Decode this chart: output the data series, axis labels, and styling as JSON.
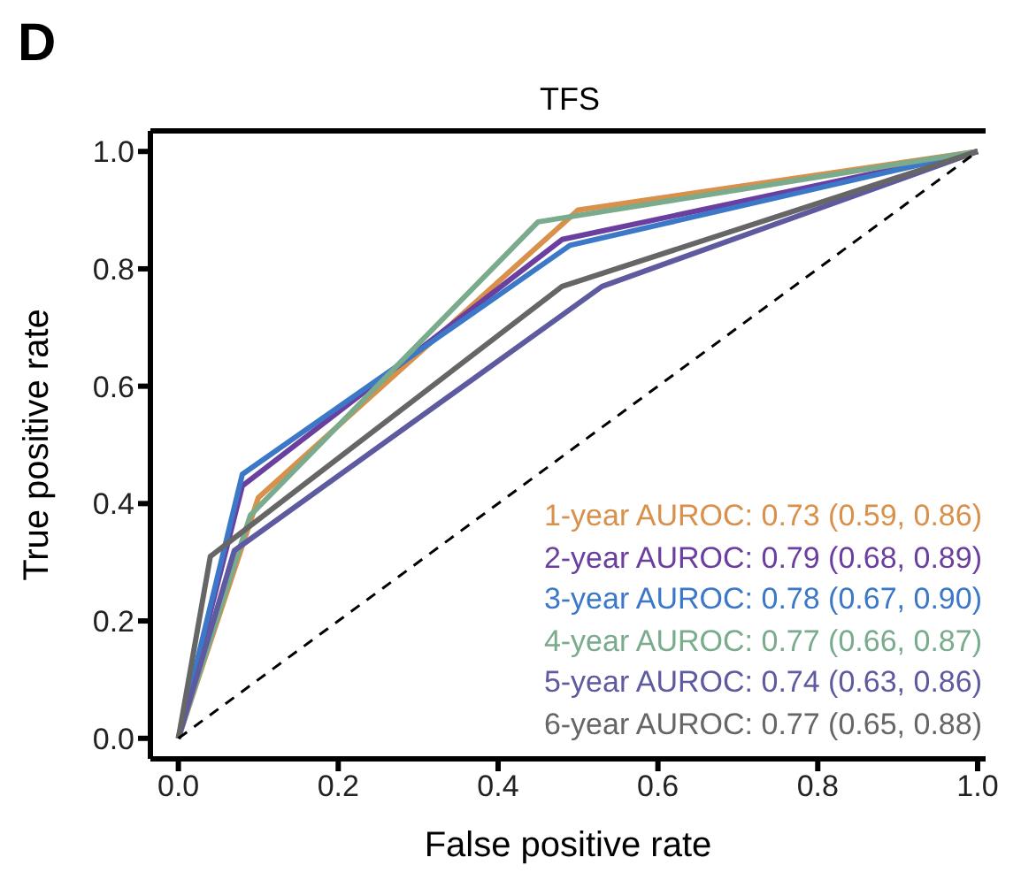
{
  "chart_data": {
    "type": "line",
    "title": "TFS",
    "xlabel": "False positive rate",
    "ylabel": "True positive rate",
    "annotations": [
      "D"
    ],
    "series": [
      {
        "name": "1-year AUROC: 0.73 (0.59, 0.86)",
        "color": "#d8904a",
        "x": [
          0,
          0.1,
          0.5,
          1
        ],
        "values": [
          0,
          0.41,
          0.9,
          1
        ]
      },
      {
        "name": "2-year AUROC: 0.79 (0.68, 0.89)",
        "color": "#6a3fa0",
        "x": [
          0,
          0.08,
          0.48,
          1
        ],
        "values": [
          0,
          0.43,
          0.85,
          1
        ]
      },
      {
        "name": "3-year AUROC: 0.78 (0.67, 0.90)",
        "color": "#3c78c8",
        "x": [
          0,
          0.08,
          0.49,
          1
        ],
        "values": [
          0,
          0.45,
          0.84,
          1
        ]
      },
      {
        "name": "4-year AUROC: 0.77 (0.66, 0.87)",
        "color": "#7aab8d",
        "x": [
          0,
          0.09,
          0.45,
          1
        ],
        "values": [
          0,
          0.38,
          0.88,
          1
        ]
      },
      {
        "name": "5-year AUROC: 0.74 (0.63, 0.86)",
        "color": "#5e5aa0",
        "x": [
          0,
          0.07,
          0.53,
          1
        ],
        "values": [
          0,
          0.32,
          0.77,
          1
        ]
      },
      {
        "name": "6-year AUROC: 0.77 (0.65, 0.88)",
        "color": "#666666",
        "x": [
          0,
          0.04,
          0.48,
          1
        ],
        "values": [
          0,
          0.31,
          0.77,
          1
        ]
      },
      {
        "color": "#000000",
        "line_style": "dashed",
        "x": [
          0,
          1
        ],
        "values": [
          0,
          1
        ]
      }
    ],
    "xlim": [
      -0.035,
      1.01
    ],
    "ylim": [
      -0.035,
      1.035
    ],
    "xticks": [
      {
        "value": 0,
        "label": "0.0"
      },
      {
        "value": 0.2,
        "label": "0.2"
      },
      {
        "value": 0.4,
        "label": "0.4"
      },
      {
        "value": 0.6,
        "label": "0.6"
      },
      {
        "value": 0.8,
        "label": "0.8"
      },
      {
        "value": 1,
        "label": "1.0"
      }
    ],
    "yticks": [
      {
        "value": 0,
        "label": "0.0"
      },
      {
        "value": 0.2,
        "label": "0.2"
      },
      {
        "value": 0.4,
        "label": "0.4"
      },
      {
        "value": 0.6,
        "label": "0.6"
      },
      {
        "value": 0.8,
        "label": "0.8"
      },
      {
        "value": 1,
        "label": "1.0"
      }
    ],
    "grid": false,
    "legend": "bottom right",
    "marker": "none",
    "line_style": "solid"
  }
}
